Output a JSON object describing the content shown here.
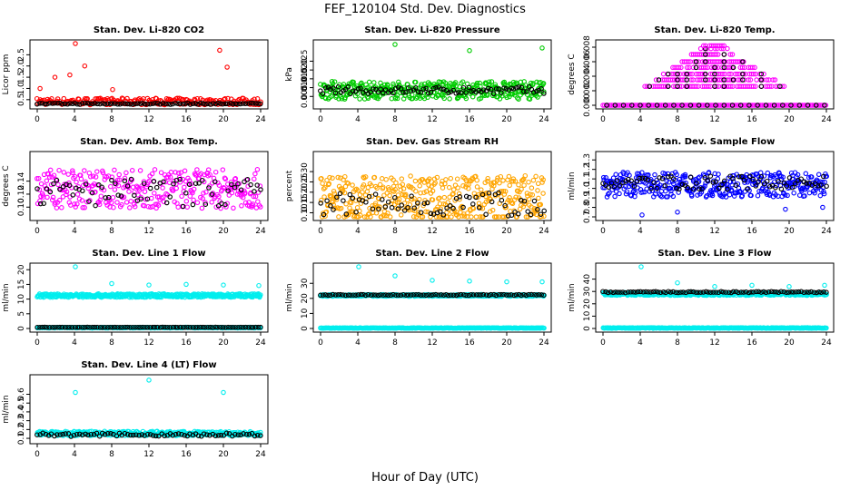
{
  "title": "FEF_120104  Std. Dev. Diagnostics",
  "xlabel": "Hour of Day (UTC)",
  "colors": {
    "co2": "#ff0000",
    "pressure": "#00cc00",
    "temp": "#ff00ff",
    "box_temp": "#ff00ff",
    "rh": "#ffa500",
    "sample_flow": "#0000ff",
    "line_flow": "#00eeee",
    "overlay": "#000000"
  },
  "chart_data": [
    {
      "type": "scatter",
      "title": "Stan. Dev. Li-820 CO2",
      "ylabel": "Licor ppm",
      "xlim": [
        0,
        24
      ],
      "ylim": [
        0.25,
        3.0
      ],
      "xticks": [
        "0",
        "4",
        "8",
        "12",
        "16",
        "20",
        "24"
      ],
      "yticks": [
        "0.5",
        "1.0",
        "1.5",
        "2.0",
        "2.5"
      ],
      "grid": false,
      "series": [
        {
          "color_key": "co2",
          "base": 0.42,
          "spread": 0.15,
          "count": 220,
          "outliers": [
            [
              0.3,
              1.0
            ],
            [
              1.9,
              1.5
            ],
            [
              3.5,
              1.6
            ],
            [
              4.1,
              3.0
            ],
            [
              5.1,
              2.0
            ],
            [
              8.1,
              0.95
            ],
            [
              19.6,
              2.7
            ],
            [
              20.4,
              1.95
            ]
          ]
        },
        {
          "color_key": "overlay",
          "base": 0.32,
          "spread": 0.03,
          "count": 90,
          "outliers": []
        }
      ]
    },
    {
      "type": "scatter",
      "title": "Stan. Dev. Li-820 Pressure",
      "ylabel": "kPa",
      "xlim": [
        0,
        24
      ],
      "ylim": [
        0.0,
        0.035
      ],
      "xticks": [
        "0",
        "4",
        "8",
        "12",
        "16",
        "20",
        "24"
      ],
      "yticks": [
        "0.005",
        "0.010",
        "0.015",
        "0.020",
        "0.025"
      ],
      "grid": false,
      "series": [
        {
          "color_key": "pressure",
          "base": 0.0085,
          "spread": 0.005,
          "count": 380,
          "outliers": [
            [
              8.0,
              0.0345
            ],
            [
              16.0,
              0.031
            ],
            [
              23.8,
              0.0325
            ]
          ]
        },
        {
          "color_key": "overlay",
          "base": 0.0085,
          "spread": 0.002,
          "count": 90,
          "outliers": []
        }
      ]
    },
    {
      "type": "scatter",
      "title": "Stan. Dev. Li-820 Temp.",
      "ylabel": "degrees C",
      "xlim": [
        0,
        24
      ],
      "ylim": [
        0.0,
        0.0085
      ],
      "xticks": [
        "0",
        "4",
        "8",
        "12",
        "16",
        "20",
        "24"
      ],
      "yticks": [
        "0.000",
        "0.002",
        "0.004",
        "0.006",
        "0.008"
      ],
      "grid": false,
      "series": [
        {
          "color_key": "temp",
          "base": 0.0,
          "spread": 0.0,
          "count": 0,
          "outliers": []
        }
      ],
      "levels": [
        0.0,
        0.0026,
        0.0035,
        0.0043,
        0.0052,
        0.006,
        0.007,
        0.0078,
        0.0082
      ]
    },
    {
      "type": "scatter",
      "title": "Stan. Dev. Amb. Box Temp.",
      "ylabel": "degrees C",
      "xlim": [
        0,
        24
      ],
      "ylim": [
        0.085,
        0.18
      ],
      "xticks": [
        "0",
        "4",
        "8",
        "12",
        "16",
        "20",
        "24"
      ],
      "yticks": [
        "0.10",
        "0.12",
        "0.14"
      ],
      "grid": false,
      "series": [
        {
          "color_key": "box_temp",
          "base": 0.128,
          "spread": 0.03,
          "count": 320,
          "outliers": []
        },
        {
          "color_key": "overlay",
          "base": 0.122,
          "spread": 0.022,
          "count": 70,
          "outliers": []
        }
      ]
    },
    {
      "type": "scatter",
      "title": "Stan. Dev. Gas Stream RH",
      "ylabel": "percent",
      "xlim": [
        0,
        24
      ],
      "ylim": [
        0.08,
        0.38
      ],
      "xticks": [
        "0",
        "4",
        "8",
        "12",
        "16",
        "20",
        "24"
      ],
      "yticks": [
        "0.10",
        "0.15",
        "0.20",
        "0.25",
        "0.30"
      ],
      "grid": false,
      "series": [
        {
          "color_key": "rh",
          "base": 0.17,
          "spread": 0.11,
          "count": 420,
          "outliers": []
        },
        {
          "color_key": "overlay",
          "base": 0.14,
          "spread": 0.06,
          "count": 70,
          "outliers": []
        }
      ]
    },
    {
      "type": "scatter",
      "title": "Stan. Dev. Sample Flow",
      "ylabel": "ml/min",
      "xlim": [
        0,
        24
      ],
      "ylim": [
        0.7,
        1.35
      ],
      "xticks": [
        "0",
        "4",
        "8",
        "12",
        "16",
        "20",
        "24"
      ],
      "yticks": [
        "0.7",
        "0.8",
        "0.9",
        "1.0",
        "1.1",
        "1.2",
        "1.3"
      ],
      "grid": false,
      "series": [
        {
          "color_key": "sample_flow",
          "base": 1.04,
          "spread": 0.13,
          "count": 380,
          "outliers": [
            [
              4.2,
              0.72
            ],
            [
              8.0,
              0.75
            ],
            [
              19.6,
              0.78
            ],
            [
              23.6,
              0.8
            ]
          ]
        },
        {
          "color_key": "overlay",
          "base": 1.06,
          "spread": 0.07,
          "count": 80,
          "outliers": []
        }
      ]
    },
    {
      "type": "scatter",
      "title": "Stan. Dev. Line 1 Flow",
      "ylabel": "ml/min",
      "xlim": [
        0,
        24
      ],
      "ylim": [
        0,
        21
      ],
      "xticks": [
        "0",
        "4",
        "8",
        "12",
        "16",
        "20",
        "24"
      ],
      "yticks": [
        "0",
        "5",
        "10",
        "15",
        "20"
      ],
      "grid": false,
      "series": [
        {
          "color_key": "line_flow",
          "base": 11.2,
          "spread": 0.6,
          "count": 420,
          "outliers": [
            [
              4.1,
              21.0
            ],
            [
              8.0,
              15.3
            ],
            [
              12.0,
              14.8
            ],
            [
              16.0,
              15.0
            ],
            [
              20.0,
              14.8
            ],
            [
              23.8,
              14.6
            ]
          ]
        },
        {
          "color_key": "line_flow",
          "base": 0.3,
          "spread": 0.15,
          "count": 300,
          "outliers": []
        },
        {
          "color_key": "overlay",
          "base": 0.4,
          "spread": 0.05,
          "count": 90,
          "outliers": []
        }
      ]
    },
    {
      "type": "scatter",
      "title": "Stan. Dev. Line 2 Flow",
      "ylabel": "ml/min",
      "xlim": [
        0,
        24
      ],
      "ylim": [
        0,
        41
      ],
      "xticks": [
        "0",
        "4",
        "8",
        "12",
        "16",
        "20",
        "24"
      ],
      "yticks": [
        "0",
        "10",
        "20",
        "30"
      ],
      "grid": false,
      "series": [
        {
          "color_key": "line_flow",
          "base": 22.0,
          "spread": 0.6,
          "count": 420,
          "outliers": [
            [
              4.1,
              41.0
            ],
            [
              8.0,
              35.0
            ],
            [
              12.0,
              32.0
            ],
            [
              16.0,
              31.5
            ],
            [
              20.0,
              31.0
            ],
            [
              23.8,
              31.0
            ]
          ]
        },
        {
          "color_key": "line_flow",
          "base": 0.3,
          "spread": 0.2,
          "count": 300,
          "outliers": []
        },
        {
          "color_key": "overlay",
          "base": 22.3,
          "spread": 0.3,
          "count": 90,
          "outliers": []
        }
      ]
    },
    {
      "type": "scatter",
      "title": "Stan. Dev. Line 3 Flow",
      "ylabel": "ml/min",
      "xlim": [
        0,
        24
      ],
      "ylim": [
        0,
        50
      ],
      "xticks": [
        "0",
        "4",
        "8",
        "12",
        "16",
        "20",
        "24"
      ],
      "yticks": [
        "0",
        "10",
        "20",
        "30",
        "40"
      ],
      "grid": false,
      "series": [
        {
          "color_key": "line_flow",
          "base": 28.0,
          "spread": 1.2,
          "count": 420,
          "outliers": [
            [
              4.1,
              50.0
            ],
            [
              8.0,
              37.0
            ],
            [
              12.0,
              34.0
            ],
            [
              16.0,
              35.0
            ],
            [
              20.0,
              34.0
            ],
            [
              23.8,
              35.0
            ]
          ]
        },
        {
          "color_key": "line_flow",
          "base": 0.4,
          "spread": 0.3,
          "count": 300,
          "outliers": []
        },
        {
          "color_key": "overlay",
          "base": 29.5,
          "spread": 0.5,
          "count": 90,
          "outliers": []
        }
      ]
    },
    {
      "type": "scatter",
      "title": "Stan. Dev. Line 4 (LT) Flow",
      "ylabel": "ml/min",
      "xlim": [
        0,
        24
      ],
      "ylim": [
        0.08,
        0.78
      ],
      "xticks": [
        "0",
        "4",
        "8",
        "12",
        "16",
        "20",
        "24"
      ],
      "yticks": [
        "0.1",
        "0.2",
        "0.3",
        "0.4",
        "0.5",
        "0.6"
      ],
      "grid": false,
      "series": [
        {
          "color_key": "line_flow",
          "base": 0.155,
          "spread": 0.025,
          "count": 360,
          "outliers": [
            [
              4.1,
              0.62
            ],
            [
              12.0,
              0.76
            ],
            [
              20.0,
              0.62
            ]
          ]
        },
        {
          "color_key": "overlay",
          "base": 0.14,
          "spread": 0.02,
          "count": 80,
          "outliers": []
        }
      ]
    }
  ]
}
